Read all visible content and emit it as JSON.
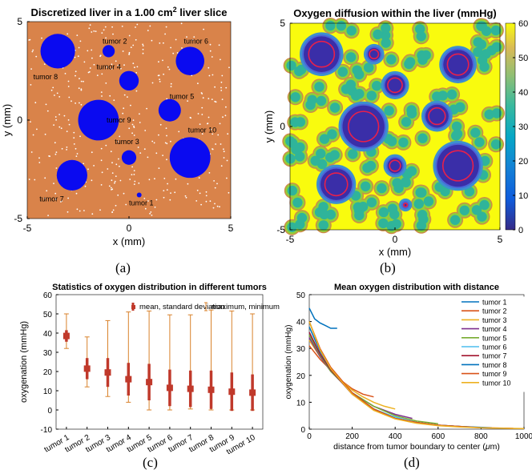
{
  "panels": {
    "a": {
      "caption": "(a)"
    },
    "b": {
      "caption": "(b)"
    },
    "c": {
      "caption": "(c)"
    },
    "d": {
      "caption": "(d)"
    }
  },
  "chart_data": [
    {
      "id": "a",
      "type": "scatter",
      "title_main": "Discretized liver in a 1.00 cm",
      "title_sup": "2",
      "title_tail": " liver slice",
      "xlabel": "x (mm)",
      "ylabel": "y (mm)",
      "xlim": [
        -5,
        5
      ],
      "ylim": [
        -5,
        5
      ],
      "xticks": [
        -5,
        0,
        5
      ],
      "yticks": [
        -5,
        0,
        5
      ],
      "colors": {
        "background": "#d9834a",
        "tumor": "#0a0af0",
        "dot": "#ffffff"
      },
      "tumors": [
        {
          "name": "tumor 1",
          "x": 0.5,
          "y": -3.8,
          "r": 0.12
        },
        {
          "name": "tumor 2",
          "x": -1.0,
          "y": 3.5,
          "r": 0.3
        },
        {
          "name": "tumor 3",
          "x": 0.0,
          "y": -1.9,
          "r": 0.36
        },
        {
          "name": "tumor 4",
          "x": 0.0,
          "y": 2.0,
          "r": 0.48
        },
        {
          "name": "tumor 5",
          "x": 2.0,
          "y": 0.5,
          "r": 0.55
        },
        {
          "name": "tumor 6",
          "x": 3.0,
          "y": 3.0,
          "r": 0.7
        },
        {
          "name": "tumor 7",
          "x": -2.8,
          "y": -2.8,
          "r": 0.75
        },
        {
          "name": "tumor 8",
          "x": -3.5,
          "y": 3.5,
          "r": 0.85
        },
        {
          "name": "tumor 9",
          "x": -1.5,
          "y": 0.0,
          "r": 1.0
        },
        {
          "name": "tumor 10",
          "x": 3.0,
          "y": -1.9,
          "r": 1.0
        }
      ],
      "labels": [
        {
          "text": "tumor 2",
          "x": -0.7,
          "y": 4.0
        },
        {
          "text": "tumor 6",
          "x": 3.3,
          "y": 4.0
        },
        {
          "text": "tumor 4",
          "x": -1.0,
          "y": 2.7
        },
        {
          "text": "tumor 8",
          "x": -4.1,
          "y": 2.2
        },
        {
          "text": "tumor 5",
          "x": 2.6,
          "y": 1.2
        },
        {
          "text": "tumor 9",
          "x": -0.5,
          "y": 0.0
        },
        {
          "text": "tumor 10",
          "x": 3.6,
          "y": -0.5
        },
        {
          "text": "tumor 3",
          "x": -0.1,
          "y": -1.1
        },
        {
          "text": "tumor 7",
          "x": -3.8,
          "y": -4.0
        },
        {
          "text": "tumor 1",
          "x": 0.6,
          "y": -4.2
        }
      ]
    },
    {
      "id": "b",
      "type": "heatmap",
      "title": "Oxygen diffusion within the liver (mmHg)",
      "xlabel": "x (mm)",
      "ylabel": "y (mm)",
      "xlim": [
        -5,
        5
      ],
      "ylim": [
        -5,
        5
      ],
      "xticks": [
        -5,
        0,
        5
      ],
      "yticks": [
        -5,
        0,
        5
      ],
      "colorbar": {
        "min": 0,
        "max": 60,
        "ticks": [
          0,
          10,
          20,
          30,
          40,
          50,
          60
        ]
      },
      "tumors": [
        {
          "x": 0.5,
          "y": -3.8,
          "r": 0.12
        },
        {
          "x": -1.0,
          "y": 3.5,
          "r": 0.3
        },
        {
          "x": 0.0,
          "y": -1.9,
          "r": 0.36
        },
        {
          "x": 0.0,
          "y": 2.0,
          "r": 0.48
        },
        {
          "x": 2.0,
          "y": 0.5,
          "r": 0.55
        },
        {
          "x": 3.0,
          "y": 3.0,
          "r": 0.7
        },
        {
          "x": -2.8,
          "y": -2.8,
          "r": 0.75
        },
        {
          "x": -3.5,
          "y": 3.5,
          "r": 0.85
        },
        {
          "x": -1.5,
          "y": 0.0,
          "r": 1.0
        },
        {
          "x": 3.0,
          "y": -1.9,
          "r": 1.0
        }
      ]
    },
    {
      "id": "c",
      "type": "bar",
      "title": "Statistics of oxygen distribution in different tumors",
      "ylabel": "oxygenation (mmHg)",
      "ylim": [
        -10,
        60
      ],
      "yticks": [
        -10,
        0,
        10,
        20,
        30,
        40,
        50,
        60
      ],
      "legend": {
        "placement": "top-right",
        "mean_label": "mean, standard deviation",
        "range_label": "maximum, minimum"
      },
      "categories": [
        "tumor 1",
        "tumor 2",
        "tumor 3",
        "tumor 4",
        "tumor 5",
        "tumor 6",
        "tumor 7",
        "tumor 8",
        "tumor 9",
        "tumor 10"
      ],
      "mean": [
        38.5,
        21.5,
        19.5,
        16,
        14.5,
        11.5,
        11,
        10.5,
        9.5,
        9
      ],
      "std": [
        3,
        5.5,
        7.5,
        8.5,
        9.5,
        9.5,
        9.5,
        10,
        10,
        9.5
      ],
      "max": [
        50,
        38,
        46.5,
        51,
        51.5,
        49.5,
        49.5,
        52,
        51.5,
        50
      ],
      "min": [
        32,
        12,
        7,
        4,
        0,
        0,
        0.5,
        0,
        0,
        0
      ],
      "colors": {
        "mean": "#c0392b",
        "range": "#d9822b"
      }
    },
    {
      "id": "d",
      "type": "line",
      "title": "Mean oxygen distribution with distance",
      "xlabel_main": "distance from tumor boundary to center (",
      "xlabel_unit": "μ",
      "xlabel_tail": "m)",
      "ylabel": "oxygenation (mmHg)",
      "xlim": [
        0,
        1000
      ],
      "ylim": [
        0,
        50
      ],
      "xticks": [
        0,
        200,
        400,
        600,
        800,
        1000
      ],
      "yticks": [
        0,
        10,
        20,
        30,
        40,
        50
      ],
      "legend": {
        "placement": "top-right"
      },
      "series": [
        {
          "name": "tumor 1",
          "color": "#0072bd",
          "x": [
            0,
            25,
            50,
            75,
            100,
            130
          ],
          "y": [
            45,
            41,
            39.5,
            38.5,
            37.5,
            37.5
          ]
        },
        {
          "name": "tumor 2",
          "color": "#d95319",
          "x": [
            0,
            50,
            100,
            150,
            200,
            250,
            300
          ],
          "y": [
            31,
            26,
            22,
            18,
            15,
            13,
            12
          ]
        },
        {
          "name": "tumor 3",
          "color": "#edb120",
          "x": [
            0,
            50,
            100,
            150,
            200,
            250,
            300,
            350,
            400
          ],
          "y": [
            33,
            27,
            22,
            18,
            14.5,
            12,
            10,
            8.5,
            7.5
          ]
        },
        {
          "name": "tumor 4",
          "color": "#7e2f8e",
          "x": [
            0,
            50,
            100,
            200,
            300,
            400,
            480
          ],
          "y": [
            34,
            27,
            21.5,
            13.5,
            8.5,
            5.5,
            4
          ]
        },
        {
          "name": "tumor 5",
          "color": "#77ac30",
          "x": [
            0,
            50,
            100,
            200,
            300,
            400,
            500,
            600
          ],
          "y": [
            35,
            27.5,
            21.5,
            13.5,
            8.5,
            5,
            3,
            2
          ]
        },
        {
          "name": "tumor 6",
          "color": "#4dbeee",
          "x": [
            0,
            50,
            100,
            200,
            300,
            400,
            500,
            600,
            700
          ],
          "y": [
            36,
            28,
            22,
            13,
            7.5,
            4.5,
            2.5,
            1.5,
            1
          ]
        },
        {
          "name": "tumor 7",
          "color": "#a2142f",
          "x": [
            0,
            50,
            100,
            200,
            300,
            400,
            500,
            600,
            700,
            750
          ],
          "y": [
            36,
            28,
            22,
            13,
            7.5,
            4,
            2.5,
            1.5,
            1,
            0.8
          ]
        },
        {
          "name": "tumor 8",
          "color": "#0072bd",
          "x": [
            0,
            50,
            100,
            200,
            300,
            400,
            500,
            600,
            700,
            850
          ],
          "y": [
            38,
            29,
            22.5,
            13.5,
            7.5,
            4,
            2.5,
            1.5,
            1,
            0.5
          ]
        },
        {
          "name": "tumor 9",
          "color": "#d95319",
          "x": [
            0,
            50,
            100,
            200,
            300,
            400,
            500,
            600,
            700,
            800,
            950
          ],
          "y": [
            40,
            30,
            23,
            13.5,
            7.5,
            4,
            2.5,
            1.5,
            1,
            0.5,
            0.3
          ]
        },
        {
          "name": "tumor 10",
          "color": "#edb120",
          "x": [
            0,
            50,
            100,
            200,
            300,
            400,
            500,
            600,
            700,
            800,
            1000
          ],
          "y": [
            40,
            29.5,
            22.5,
            13,
            7,
            3.8,
            2.2,
            1.3,
            0.8,
            0.5,
            0.2
          ]
        }
      ]
    }
  ]
}
